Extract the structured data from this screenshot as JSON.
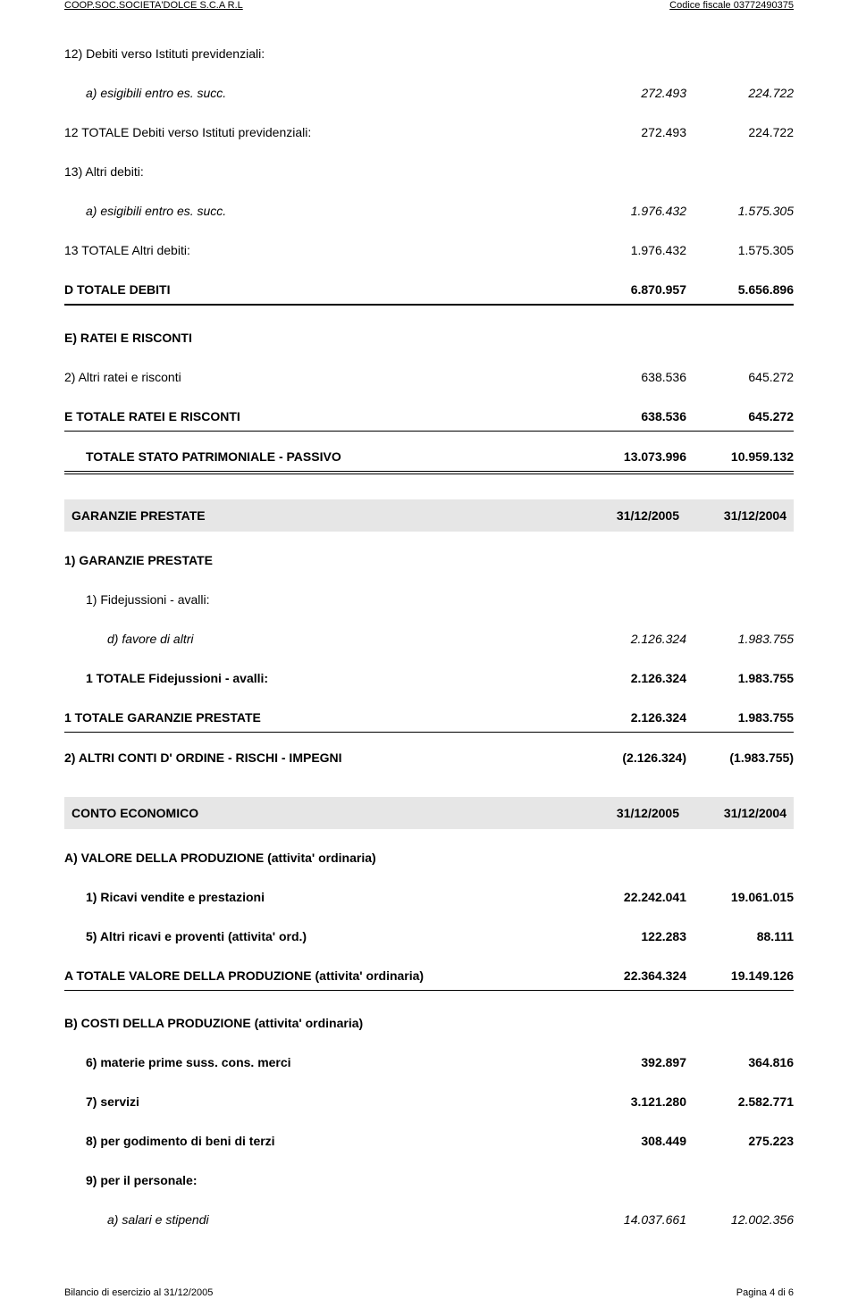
{
  "header": {
    "left": "COOP.SOC.SOCIETA'DOLCE S.C.A R.L",
    "right": "Codice fiscale 03772490375"
  },
  "rows": [
    {
      "label": "12) Debiti verso Istituti previdenziali:",
      "c1": "",
      "c2": "",
      "cls": "section-gap-lg"
    },
    {
      "label": "a) esigibili entro es. succ.",
      "c1": "272.493",
      "c2": "224.722",
      "cls": "indent1 italic section-gap"
    },
    {
      "label": "12 TOTALE Debiti verso Istituti previdenziali:",
      "c1": "272.493",
      "c2": "224.722",
      "cls": "section-gap"
    },
    {
      "label": "13) Altri debiti:",
      "c1": "",
      "c2": "",
      "cls": "section-gap"
    },
    {
      "label": "a) esigibili entro es. succ.",
      "c1": "1.976.432",
      "c2": "1.575.305",
      "cls": "indent1 italic section-gap"
    },
    {
      "label": "13 TOTALE Altri debiti:",
      "c1": "1.976.432",
      "c2": "1.575.305",
      "cls": "section-gap"
    },
    {
      "label": "D TOTALE DEBITI",
      "c1": "6.870.957",
      "c2": "5.656.896",
      "cls": "bold line-medium section-gap"
    },
    {
      "label": "E) RATEI E RISCONTI",
      "c1": "",
      "c2": "",
      "cls": "bold section-gap-lg"
    },
    {
      "label": "2) Altri ratei e risconti",
      "c1": "638.536",
      "c2": "645.272",
      "cls": "section-gap"
    },
    {
      "label": "E TOTALE RATEI E RISCONTI",
      "c1": "638.536",
      "c2": "645.272",
      "cls": "bold line-thin section-gap"
    },
    {
      "label": "TOTALE STATO PATRIMONIALE - PASSIVO",
      "c1": "13.073.996",
      "c2": "10.959.132",
      "cls": "bold indent1 line-double section-gap"
    }
  ],
  "banner1": {
    "label": "GARANZIE PRESTATE",
    "c1": "31/12/2005",
    "c2": "31/12/2004"
  },
  "rows2": [
    {
      "label": "1) GARANZIE PRESTATE",
      "c1": "",
      "c2": "",
      "cls": "bold section-gap"
    },
    {
      "label": "1) Fidejussioni - avalli:",
      "c1": "",
      "c2": "",
      "cls": "indent1 section-gap"
    },
    {
      "label": "d) favore di altri",
      "c1": "2.126.324",
      "c2": "1.983.755",
      "cls": "indent2 italic section-gap"
    },
    {
      "label": "1 TOTALE Fidejussioni - avalli:",
      "c1": "2.126.324",
      "c2": "1.983.755",
      "cls": "indent1 bold section-gap"
    },
    {
      "label": "1 TOTALE GARANZIE PRESTATE",
      "c1": "2.126.324",
      "c2": "1.983.755",
      "cls": "bold line-thin section-gap"
    },
    {
      "label": "2) ALTRI CONTI D' ORDINE - RISCHI - IMPEGNI",
      "c1": "(2.126.324)",
      "c2": "(1.983.755)",
      "cls": "bold section-gap"
    }
  ],
  "banner2": {
    "label": "CONTO ECONOMICO",
    "c1": "31/12/2005",
    "c2": "31/12/2004"
  },
  "rows3": [
    {
      "label": "A) VALORE DELLA PRODUZIONE (attivita' ordinaria)",
      "c1": "",
      "c2": "",
      "cls": "bold section-gap"
    },
    {
      "label": "1) Ricavi vendite e prestazioni",
      "c1": "22.242.041",
      "c2": "19.061.015",
      "cls": "indent1 bold section-gap"
    },
    {
      "label": "5) Altri ricavi e proventi (attivita' ord.)",
      "c1": "122.283",
      "c2": "88.111",
      "cls": "indent1 bold section-gap"
    },
    {
      "label": "A TOTALE VALORE DELLA PRODUZIONE (attivita' ordinaria)",
      "c1": "22.364.324",
      "c2": "19.149.126",
      "cls": "bold line-thin section-gap"
    },
    {
      "label": "B) COSTI DELLA PRODUZIONE (attivita' ordinaria)",
      "c1": "",
      "c2": "",
      "cls": "bold section-gap-lg"
    },
    {
      "label": "6) materie prime suss. cons. merci",
      "c1": "392.897",
      "c2": "364.816",
      "cls": "indent1 bold section-gap"
    },
    {
      "label": "7) servizi",
      "c1": "3.121.280",
      "c2": "2.582.771",
      "cls": "indent1 bold section-gap"
    },
    {
      "label": "8) per godimento di beni di terzi",
      "c1": "308.449",
      "c2": "275.223",
      "cls": "indent1 bold section-gap"
    },
    {
      "label": "9) per il personale:",
      "c1": "",
      "c2": "",
      "cls": "indent1 bold section-gap"
    },
    {
      "label": "a) salari e stipendi",
      "c1": "14.037.661",
      "c2": "12.002.356",
      "cls": "indent2 italic section-gap"
    }
  ],
  "footer": {
    "left": "Bilancio di esercizio al 31/12/2005",
    "right": "Pagina 4 di 6"
  }
}
